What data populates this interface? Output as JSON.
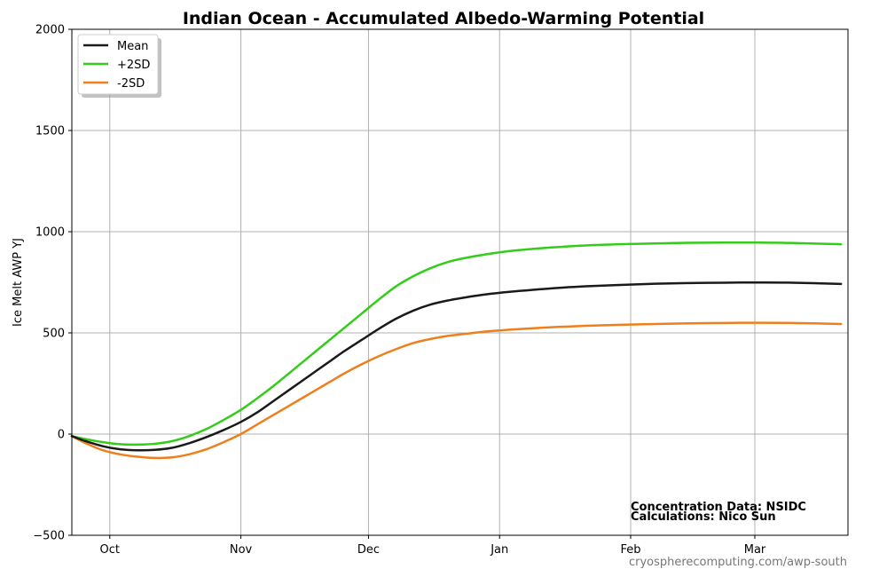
{
  "footer": "cryospherecomputing.com/awp-south",
  "chart_data": {
    "type": "line",
    "title": "Indian Ocean - Accumulated Albedo-Warming Potential",
    "xlabel": "",
    "ylabel": "Ice Melt AWP  YJ",
    "x_unit": "day-of-season",
    "xlim": [
      -9,
      216
    ],
    "ylim": [
      -500,
      2000
    ],
    "y_ticks": [
      -500,
      0,
      500,
      1000,
      1500,
      2000
    ],
    "y_tick_labels": [
      "−500",
      "0",
      "500",
      "1000",
      "1500",
      "2000"
    ],
    "x_ticks": [
      {
        "label": "Oct",
        "day": 2
      },
      {
        "label": "Nov",
        "day": 40
      },
      {
        "label": "Dec",
        "day": 77
      },
      {
        "label": "Jan",
        "day": 115
      },
      {
        "label": "Feb",
        "day": 153
      },
      {
        "label": "Mar",
        "day": 189
      }
    ],
    "grid": true,
    "legend_position": "upper-left",
    "annotations": [
      "Concentration Data: NSIDC",
      "Calculations: Nico Sun"
    ],
    "x": [
      -9,
      -5,
      0,
      5,
      10,
      15,
      20,
      25,
      30,
      35,
      40,
      45,
      50,
      55,
      60,
      65,
      70,
      75,
      80,
      85,
      90,
      95,
      100,
      105,
      110,
      115,
      120,
      130,
      140,
      150,
      160,
      170,
      180,
      190,
      200,
      214
    ],
    "series": [
      {
        "name": "Mean",
        "color": "#1a1a1a",
        "values": [
          -10,
          -35,
          -60,
          -75,
          -80,
          -78,
          -68,
          -45,
          -15,
          20,
          60,
          110,
          170,
          230,
          290,
          350,
          410,
          465,
          520,
          570,
          610,
          640,
          660,
          675,
          688,
          698,
          706,
          720,
          730,
          737,
          743,
          746,
          748,
          749,
          748,
          742
        ]
      },
      {
        "name": "+2SD",
        "color": "#33cc1a",
        "values": [
          -10,
          -25,
          -40,
          -50,
          -52,
          -48,
          -35,
          -10,
          25,
          70,
          120,
          180,
          245,
          315,
          385,
          455,
          525,
          595,
          665,
          730,
          780,
          820,
          850,
          870,
          885,
          898,
          908,
          922,
          932,
          938,
          942,
          945,
          946,
          946,
          944,
          938
        ]
      },
      {
        "name": "-2SD",
        "color": "#ee7f1c",
        "values": [
          -10,
          -45,
          -80,
          -100,
          -112,
          -118,
          -115,
          -100,
          -75,
          -40,
          0,
          50,
          100,
          150,
          200,
          250,
          300,
          345,
          385,
          420,
          450,
          470,
          485,
          495,
          505,
          512,
          518,
          528,
          535,
          540,
          544,
          547,
          549,
          550,
          549,
          544
        ]
      }
    ]
  }
}
